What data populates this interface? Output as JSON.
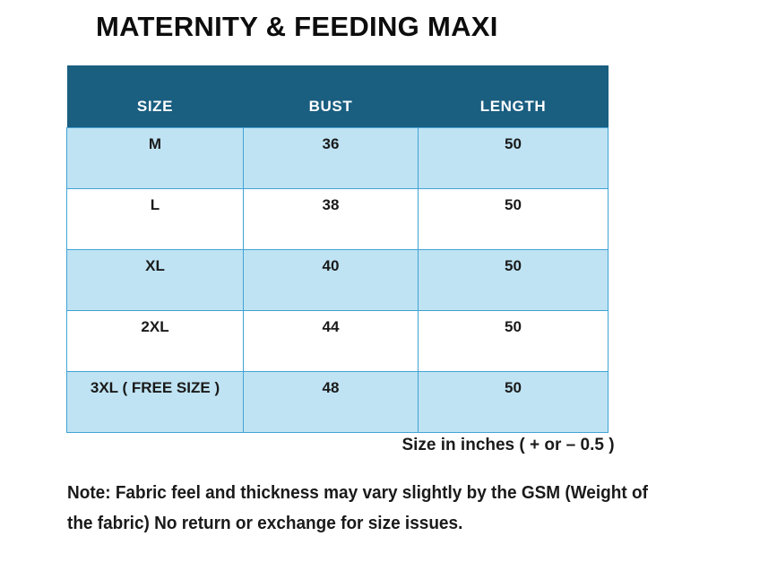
{
  "page": {
    "title": "MATERNITY & FEEDING MAXI"
  },
  "size_chart": {
    "columns": [
      "SIZE",
      "BUST",
      "LENGTH"
    ],
    "rows": [
      {
        "size": "M",
        "bust": "36",
        "length": "50"
      },
      {
        "size": "L",
        "bust": "38",
        "length": "50"
      },
      {
        "size": "XL",
        "bust": "40",
        "length": "50"
      },
      {
        "size": "2XL",
        "bust": "44",
        "length": "50"
      },
      {
        "size": "3XL ( FREE SIZE )",
        "bust": "48",
        "length": "50"
      }
    ],
    "unit_note": "Size in inches ( + or  – 0.5 )"
  },
  "footnote": {
    "line1": "Note: Fabric feel and thickness may vary slightly by the GSM (Weight of",
    "line2": "the fabric) No return or exchange for size issues."
  },
  "chart_data": {
    "type": "table",
    "title": "MATERNITY & FEEDING MAXI",
    "columns": [
      "SIZE",
      "BUST",
      "LENGTH"
    ],
    "rows": [
      [
        "M",
        36,
        50
      ],
      [
        "L",
        38,
        50
      ],
      [
        "XL",
        40,
        50
      ],
      [
        "2XL",
        44,
        50
      ],
      [
        "3XL ( FREE SIZE )",
        48,
        50
      ]
    ],
    "unit": "Size in inches ( + or  – 0.5 )"
  },
  "colors": {
    "header_bg": "#1A5E80",
    "row_highlight": "#BFE3F3",
    "table_border": "#41A3D4",
    "header_text": "#FFFFFF",
    "text_color": "#1A1A1A",
    "page_bg": "#FFFFFF"
  }
}
